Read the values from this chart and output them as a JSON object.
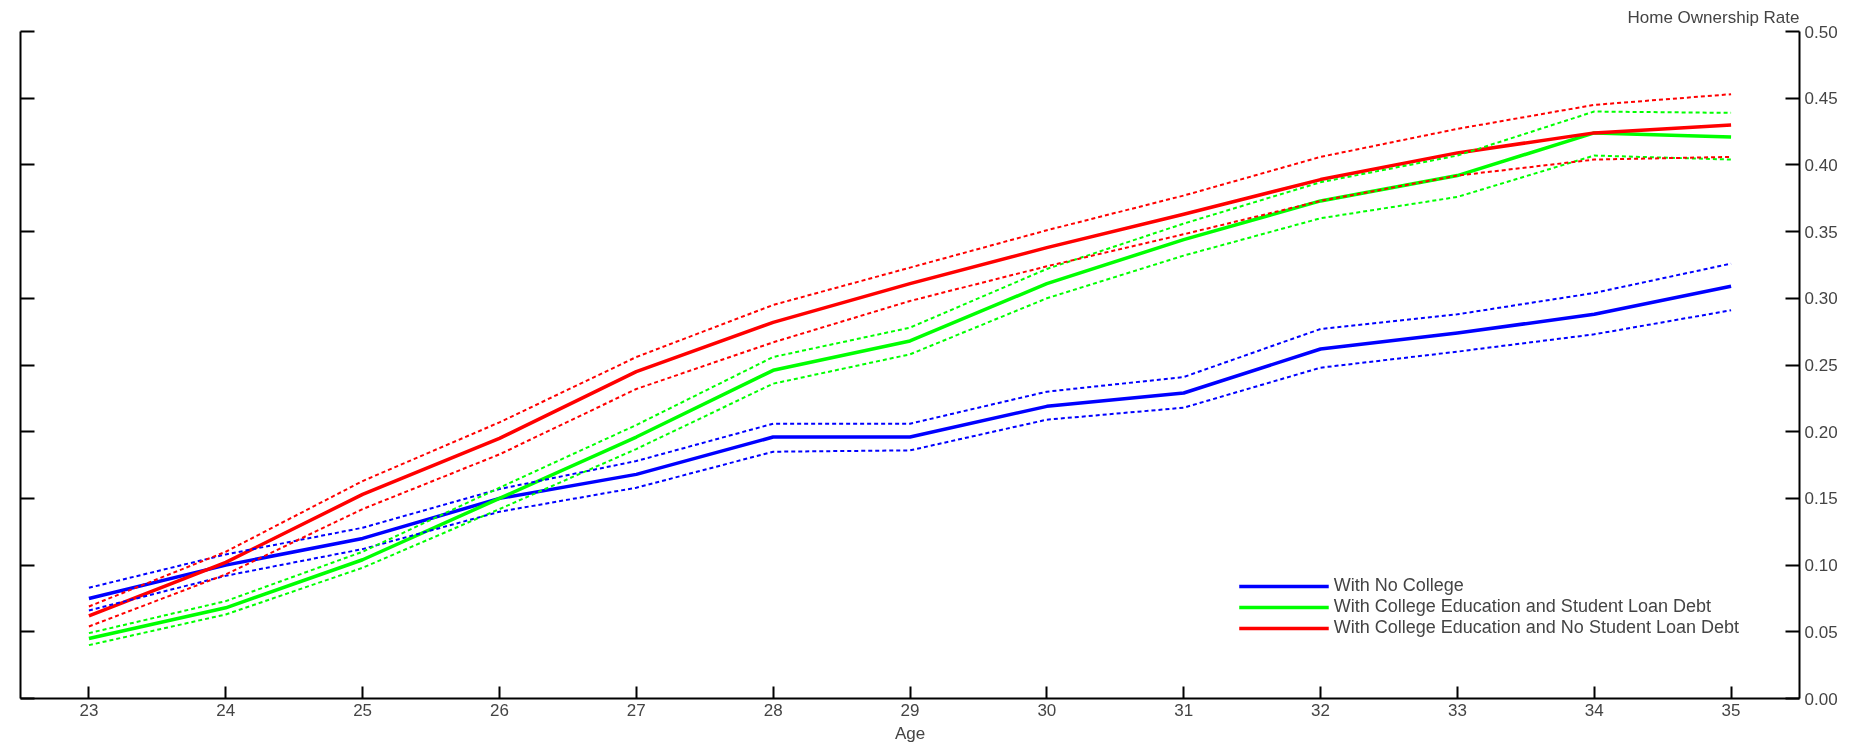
{
  "chart_data": {
    "type": "line",
    "xlabel": "Age",
    "ylabel": "Home Ownership Rate",
    "x": [
      23,
      24,
      25,
      26,
      27,
      28,
      29,
      30,
      31,
      32,
      33,
      34,
      35
    ],
    "xlim": [
      22.5,
      35.5
    ],
    "xticks": [
      23,
      24,
      25,
      26,
      27,
      28,
      29,
      30,
      31,
      32,
      33,
      34,
      35
    ],
    "ylim": [
      0,
      0.5
    ],
    "yticks": [
      {
        "value": 0,
        "label": "0.00"
      },
      {
        "value": 0.05,
        "label": "0.05"
      },
      {
        "value": 0.1,
        "label": "0.10"
      },
      {
        "value": 0.15,
        "label": "0.15"
      },
      {
        "value": 0.2,
        "label": "0.20"
      },
      {
        "value": 0.25,
        "label": "0.25"
      },
      {
        "value": 0.3,
        "label": "0.30"
      },
      {
        "value": 0.35,
        "label": "0.35"
      },
      {
        "value": 0.4,
        "label": "0.40"
      },
      {
        "value": 0.45,
        "label": "0.45"
      },
      {
        "value": 0.5,
        "label": "0.50"
      }
    ],
    "grid": false,
    "legend": "bottom right",
    "line_style": "solid",
    "marker": "none",
    "series": [
      {
        "name": "With No College",
        "color": "#0000ff",
        "values": [
          0.075,
          0.1,
          0.12,
          0.15,
          0.168,
          0.196,
          0.196,
          0.219,
          0.229,
          0.262,
          0.274,
          0.288,
          0.309
        ]
      },
      {
        "name": "With College Education and Student Loan Debt",
        "color": "#00ff00",
        "values": [
          0.045,
          0.068,
          0.104,
          0.15,
          0.196,
          0.246,
          0.268,
          0.311,
          0.344,
          0.373,
          0.392,
          0.424,
          0.421
        ]
      },
      {
        "name": "With College Education and No Student Loan Debt",
        "color": "#ff0000",
        "values": [
          0.062,
          0.102,
          0.153,
          0.195,
          0.245,
          0.282,
          0.311,
          0.338,
          0.363,
          0.389,
          0.409,
          0.424,
          0.43
        ]
      },
      {
        "color": "#0000ff",
        "line_style": "dashed",
        "values": [
          0.083,
          0.108,
          0.128,
          0.157,
          0.178,
          0.206,
          0.206,
          0.23,
          0.241,
          0.277,
          0.288,
          0.304,
          0.326
        ]
      },
      {
        "color": "#0000ff",
        "line_style": "dashed",
        "values": [
          0.066,
          0.092,
          0.112,
          0.14,
          0.158,
          0.185,
          0.186,
          0.209,
          0.218,
          0.248,
          0.26,
          0.273,
          0.291
        ]
      },
      {
        "color": "#00ff00",
        "line_style": "dashed",
        "values": [
          0.049,
          0.073,
          0.11,
          0.158,
          0.205,
          0.256,
          0.278,
          0.322,
          0.356,
          0.387,
          0.407,
          0.44,
          0.439
        ]
      },
      {
        "color": "#00ff00",
        "line_style": "dashed",
        "values": [
          0.04,
          0.063,
          0.098,
          0.142,
          0.187,
          0.236,
          0.258,
          0.3,
          0.332,
          0.36,
          0.376,
          0.407,
          0.404
        ]
      },
      {
        "color": "#ff0000",
        "line_style": "dashed",
        "values": [
          0.069,
          0.11,
          0.163,
          0.207,
          0.256,
          0.295,
          0.323,
          0.351,
          0.377,
          0.406,
          0.427,
          0.445,
          0.453
        ]
      },
      {
        "color": "#ff0000",
        "line_style": "dashed",
        "values": [
          0.054,
          0.093,
          0.142,
          0.183,
          0.232,
          0.267,
          0.298,
          0.324,
          0.348,
          0.373,
          0.392,
          0.404,
          0.406
        ]
      }
    ]
  }
}
